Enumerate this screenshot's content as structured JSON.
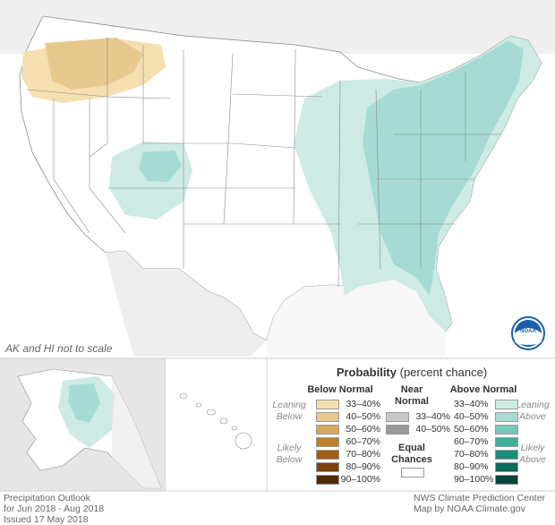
{
  "map": {
    "scale_note": "AK and HI not to scale",
    "colors": {
      "land": "#ffffff",
      "border": "#8a8a8a",
      "ocean_inset": "#e6e6e6",
      "canada": "#e8e8e8",
      "below_33_40": "#f5dfb0",
      "below_40_50": "#e8c98d",
      "above_33_40": "#cdeae5",
      "above_40_50": "#a6dbd3"
    }
  },
  "legend": {
    "title_bold": "Probability",
    "title_rest": " (percent chance)",
    "below": {
      "header": "Below Normal",
      "side_top": [
        "Leaning",
        "Below"
      ],
      "side_bottom": [
        "Likely",
        "Below"
      ],
      "items": [
        {
          "label": "33–40%",
          "color": "#f5dfb0"
        },
        {
          "label": "40–50%",
          "color": "#e8c98d"
        },
        {
          "label": "50–60%",
          "color": "#d6a75a"
        },
        {
          "label": "60–70%",
          "color": "#bd7f2b"
        },
        {
          "label": "70–80%",
          "color": "#9e5d15"
        },
        {
          "label": "80–90%",
          "color": "#7a420b"
        },
        {
          "label": "90–100%",
          "color": "#4f2905"
        }
      ]
    },
    "near": {
      "header": [
        "Near",
        "Normal"
      ],
      "items": [
        {
          "label": "33–40%",
          "color": "#c8c8c8"
        },
        {
          "label": "40–50%",
          "color": "#9a9a9a"
        }
      ]
    },
    "equal": {
      "header": [
        "Equal",
        "Chances"
      ],
      "color": "#ffffff"
    },
    "above": {
      "header": "Above Normal",
      "side_top": [
        "Leaning",
        "Above"
      ],
      "side_bottom": [
        "Likely",
        "Above"
      ],
      "items": [
        {
          "label": "33–40%",
          "color": "#cdeae5"
        },
        {
          "label": "40–50%",
          "color": "#a6dbd3"
        },
        {
          "label": "50–60%",
          "color": "#76c8bb"
        },
        {
          "label": "60–70%",
          "color": "#3fae9c"
        },
        {
          "label": "70–80%",
          "color": "#1a8c79"
        },
        {
          "label": "80–90%",
          "color": "#0c6a5a"
        },
        {
          "label": "90–100%",
          "color": "#054439"
        }
      ]
    }
  },
  "footer": {
    "left": [
      "Precipitation Outlook",
      "for Jun 2018 - Aug 2018",
      "Issued 17 May 2018"
    ],
    "right": [
      "NWS Climate Prediction Center",
      "Map by NOAA Climate.gov"
    ]
  },
  "logo": {
    "text": "NOAA"
  }
}
